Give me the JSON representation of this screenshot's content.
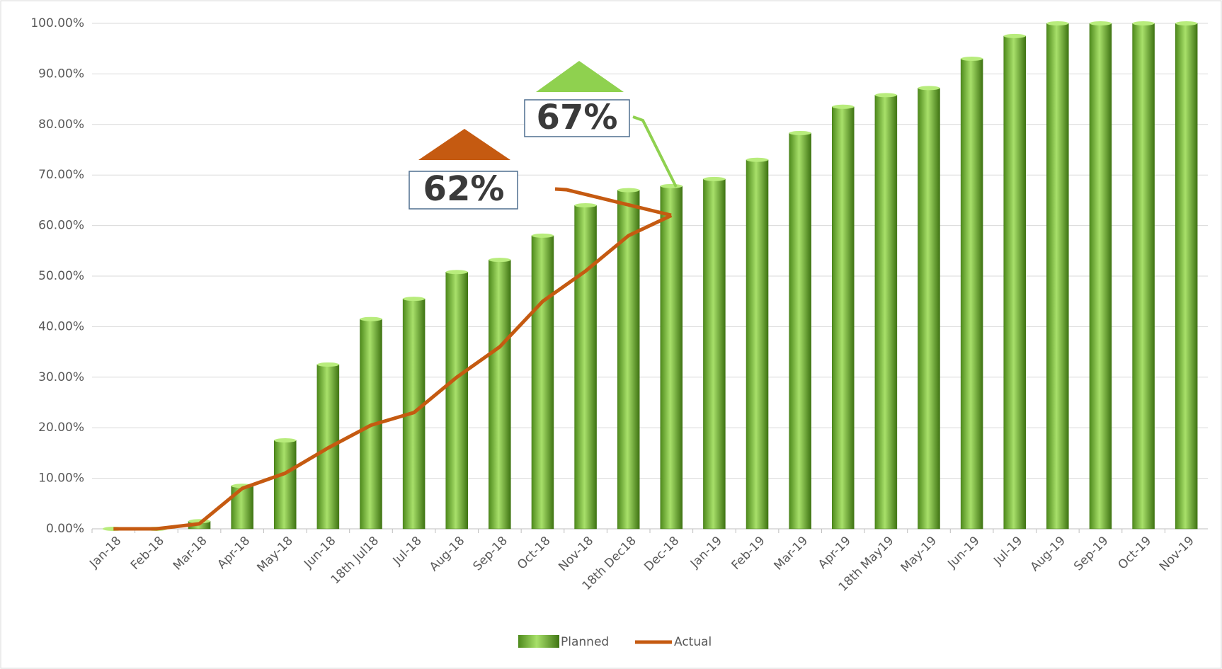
{
  "chart_data": {
    "type": "bar_line",
    "categories": [
      "Jan-18",
      "Feb-18",
      "Mar-18",
      "Apr-18",
      "May-18",
      "Jun-18",
      "18th Jul18",
      "Jul-18",
      "Aug-18",
      "Sep-18",
      "Oct-18",
      "Nov-18",
      "18th Dec18",
      "Dec-18",
      "Jan-19",
      "Feb-19",
      "Mar-19",
      "Apr-19",
      "18th May19",
      "May-19",
      "Jun-19",
      "Jul-19",
      "Aug-19",
      "Sep-19",
      "Oct-19",
      "Nov-19"
    ],
    "series": [
      {
        "name": "Planned",
        "type": "bar",
        "color": "#7dc242",
        "values": [
          0,
          0,
          1.5,
          8.5,
          17.5,
          32.5,
          41.5,
          45.5,
          50.8,
          53.2,
          58,
          64,
          67,
          67.8,
          69.2,
          73,
          78.3,
          83.5,
          85.8,
          87.2,
          93,
          97.5,
          100,
          100,
          100,
          100
        ]
      },
      {
        "name": "Actual",
        "type": "line",
        "color": "#c55a11",
        "values": [
          0,
          0,
          1,
          8,
          11,
          16,
          20.5,
          23,
          30,
          36,
          45,
          51,
          58,
          62,
          null,
          null,
          null,
          null,
          null,
          null,
          null,
          null,
          null,
          null,
          null,
          null
        ]
      }
    ],
    "ylim": [
      0,
      100
    ],
    "yticks": [
      {
        "value": 0,
        "label": "0.00%"
      },
      {
        "value": 10,
        "label": "10.00%"
      },
      {
        "value": 20,
        "label": "20.00%"
      },
      {
        "value": 30,
        "label": "30.00%"
      },
      {
        "value": 40,
        "label": "40.00%"
      },
      {
        "value": 50,
        "label": "50.00%"
      },
      {
        "value": 60,
        "label": "60.00%"
      },
      {
        "value": 70,
        "label": "70.00%"
      },
      {
        "value": 80,
        "label": "80.00%"
      },
      {
        "value": 90,
        "label": "90.00%"
      },
      {
        "value": 100,
        "label": "100.00%"
      }
    ],
    "grid": true,
    "legend": "bottom",
    "annotations": [
      "67%",
      "62%"
    ]
  }
}
